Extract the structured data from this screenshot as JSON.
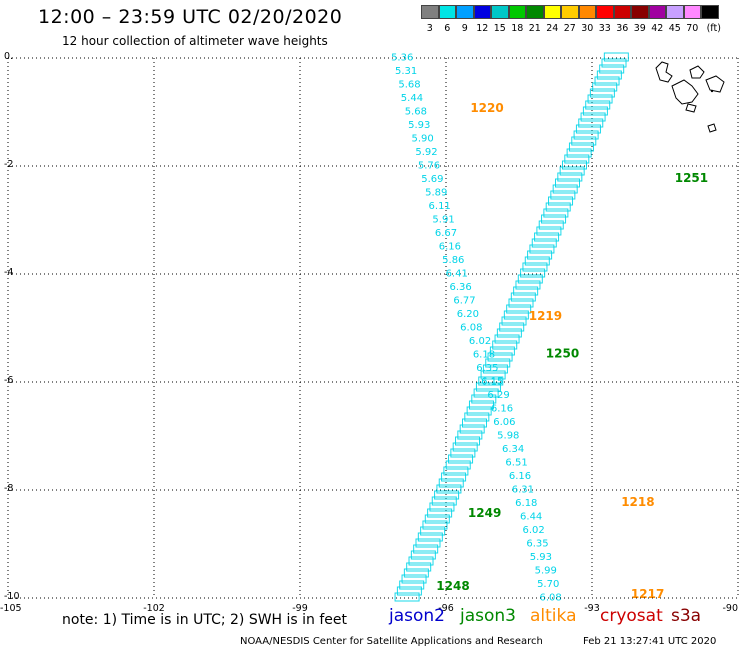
{
  "header": {
    "title": "12:00 – 23:59 UTC 02/20/2020",
    "subtitle": "12 hour collection of altimeter wave heights"
  },
  "scale": {
    "colors": [
      "#808080",
      "#00e5e5",
      "#00a0ff",
      "#0000e0",
      "#00c8c8",
      "#00c800",
      "#008800",
      "#ffff00",
      "#ffcc00",
      "#ff8800",
      "#ff0000",
      "#cc0000",
      "#880000",
      "#a000a0",
      "#c8a0ff",
      "#ff88ff",
      "#000000"
    ],
    "labels": [
      "3",
      "6",
      "9",
      "12",
      "15",
      "18",
      "21",
      "24",
      "27",
      "30",
      "33",
      "36",
      "39",
      "42",
      "45",
      "70",
      "(ft)"
    ]
  },
  "map": {
    "x_ticks": [
      "-105",
      "-102",
      "-99",
      "-96",
      "-93",
      "-90"
    ],
    "y_ticks": [
      "0.",
      "-2",
      "-4",
      "-6",
      "-8",
      "-10"
    ],
    "x_range": [
      -105,
      -90
    ],
    "y_range": [
      -10,
      0
    ],
    "track_colors": {
      "jason3": "#00d4e8",
      "altika_times": "#ff8c00",
      "jason3_times": "#008800"
    },
    "west_track": [
      {
        "lon": -96.9,
        "lat": -0.05,
        "v": "5.36"
      },
      {
        "lon": -96.82,
        "lat": -0.3,
        "v": "5.31"
      },
      {
        "lon": -96.75,
        "lat": -0.55,
        "v": "5.68"
      },
      {
        "lon": -96.7,
        "lat": -0.8,
        "v": "5.44"
      },
      {
        "lon": -96.62,
        "lat": -1.05,
        "v": "5.68"
      },
      {
        "lon": -96.55,
        "lat": -1.3,
        "v": "5.93"
      },
      {
        "lon": -96.48,
        "lat": -1.55,
        "v": "5.90"
      },
      {
        "lon": -96.4,
        "lat": -1.8,
        "v": "5.92"
      },
      {
        "lon": -96.35,
        "lat": -2.05,
        "v": "5.76"
      },
      {
        "lon": -96.28,
        "lat": -2.3,
        "v": "5.69"
      },
      {
        "lon": -96.2,
        "lat": -2.55,
        "v": "5.89"
      },
      {
        "lon": -96.13,
        "lat": -2.8,
        "v": "6.11"
      },
      {
        "lon": -96.05,
        "lat": -3.05,
        "v": "5.91"
      },
      {
        "lon": -96.0,
        "lat": -3.3,
        "v": "6.67"
      },
      {
        "lon": -95.92,
        "lat": -3.55,
        "v": "6.16"
      },
      {
        "lon": -95.85,
        "lat": -3.8,
        "v": "5.86"
      },
      {
        "lon": -95.78,
        "lat": -4.05,
        "v": "6.41"
      },
      {
        "lon": -95.7,
        "lat": -4.3,
        "v": "6.36"
      },
      {
        "lon": -95.62,
        "lat": -4.55,
        "v": "6.77"
      },
      {
        "lon": -95.55,
        "lat": -4.8,
        "v": "6.20"
      },
      {
        "lon": -95.48,
        "lat": -5.05,
        "v": "6.08"
      },
      {
        "lon": -95.3,
        "lat": -5.3,
        "v": "6.02"
      },
      {
        "lon": -95.22,
        "lat": -5.55,
        "v": "6.18"
      },
      {
        "lon": -95.15,
        "lat": -5.8,
        "v": "6.35"
      },
      {
        "lon": -95.05,
        "lat": -6.05,
        "v": "6.15"
      },
      {
        "lon": -94.92,
        "lat": -6.3,
        "v": "6.29"
      },
      {
        "lon": -94.85,
        "lat": -6.55,
        "v": "6.16"
      },
      {
        "lon": -94.8,
        "lat": -6.8,
        "v": "6.06"
      },
      {
        "lon": -94.72,
        "lat": -7.05,
        "v": "5.98"
      },
      {
        "lon": -94.62,
        "lat": -7.3,
        "v": "6.34"
      },
      {
        "lon": -94.55,
        "lat": -7.55,
        "v": "6.51"
      },
      {
        "lon": -94.48,
        "lat": -7.8,
        "v": "6.16"
      },
      {
        "lon": -94.42,
        "lat": -8.05,
        "v": "6.31"
      },
      {
        "lon": -94.35,
        "lat": -8.3,
        "v": "6.18"
      },
      {
        "lon": -94.25,
        "lat": -8.55,
        "v": "6.44"
      },
      {
        "lon": -94.2,
        "lat": -8.8,
        "v": "6.02"
      },
      {
        "lon": -94.12,
        "lat": -9.05,
        "v": "6.35"
      },
      {
        "lon": -94.05,
        "lat": -9.3,
        "v": "5.93"
      },
      {
        "lon": -93.95,
        "lat": -9.55,
        "v": "5.99"
      },
      {
        "lon": -93.9,
        "lat": -9.8,
        "v": "5.70"
      },
      {
        "lon": -93.85,
        "lat": -10.05,
        "v": "6.08"
      }
    ],
    "diagonal_track": {
      "start": {
        "lon": -92.5,
        "lat": 0.0
      },
      "end": {
        "lon": -96.8,
        "lat": -10.0
      }
    },
    "time_labels": [
      {
        "text": "1220",
        "lon": -95.5,
        "lat": -1.0,
        "color": "#ff8c00"
      },
      {
        "text": "1219",
        "lon": -94.3,
        "lat": -4.85,
        "color": "#ff8c00"
      },
      {
        "text": "1218",
        "lon": -92.4,
        "lat": -8.3,
        "color": "#ff8c00"
      },
      {
        "text": "1217",
        "lon": -92.2,
        "lat": -10.0,
        "color": "#ff8c00"
      },
      {
        "text": "1251",
        "lon": -91.3,
        "lat": -2.3,
        "color": "#008800"
      },
      {
        "text": "1250",
        "lon": -93.95,
        "lat": -5.55,
        "color": "#008800"
      },
      {
        "text": "1249",
        "lon": -95.55,
        "lat": -8.5,
        "color": "#008800"
      },
      {
        "text": "1248",
        "lon": -96.2,
        "lat": -9.85,
        "color": "#008800"
      }
    ]
  },
  "footer": {
    "note": "note:  1) Time is in UTC;  2) SWH is in feet",
    "sats": [
      {
        "name": "jason2",
        "color": "#0000cc"
      },
      {
        "name": "jason3",
        "color": "#008800"
      },
      {
        "name": "altika",
        "color": "#ff8c00"
      },
      {
        "name": "cryosat",
        "color": "#cc0000"
      },
      {
        "name": "s3a",
        "color": "#880000"
      }
    ],
    "credit": "NOAA/NESDIS Center for Satellite Applications and Research",
    "timestamp": "Feb 21 13:27:41 UTC 2020"
  }
}
